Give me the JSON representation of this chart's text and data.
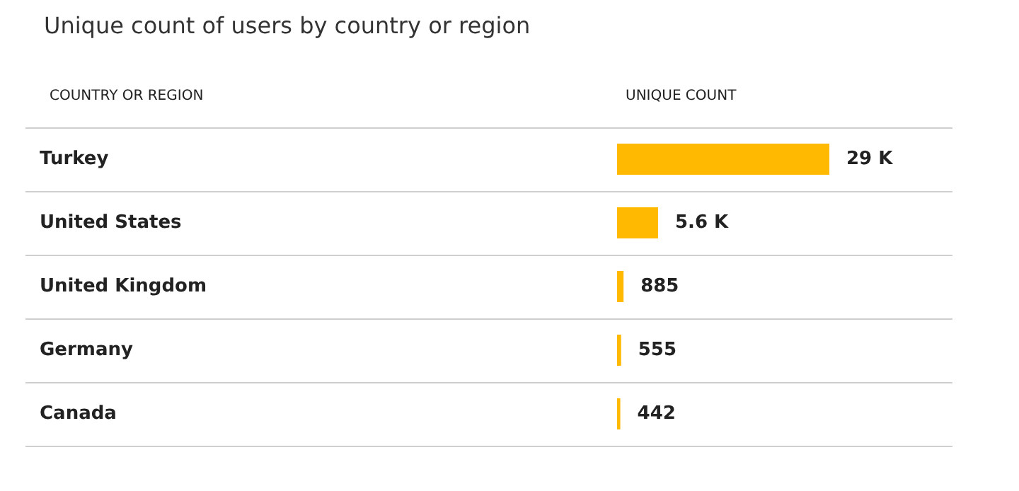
{
  "chart_data": {
    "type": "bar",
    "orientation": "horizontal",
    "title": "Unique count of users by country or region",
    "xlabel": "UNIQUE COUNT",
    "ylabel": "COUNTRY OR REGION",
    "categories": [
      "Turkey",
      "United States",
      "United Kingdom",
      "Germany",
      "Canada"
    ],
    "values": [
      29000,
      5600,
      885,
      555,
      442
    ],
    "value_labels": [
      "29 K",
      "5.6 K",
      "885",
      "555",
      "442"
    ],
    "color": "#ffb900"
  }
}
